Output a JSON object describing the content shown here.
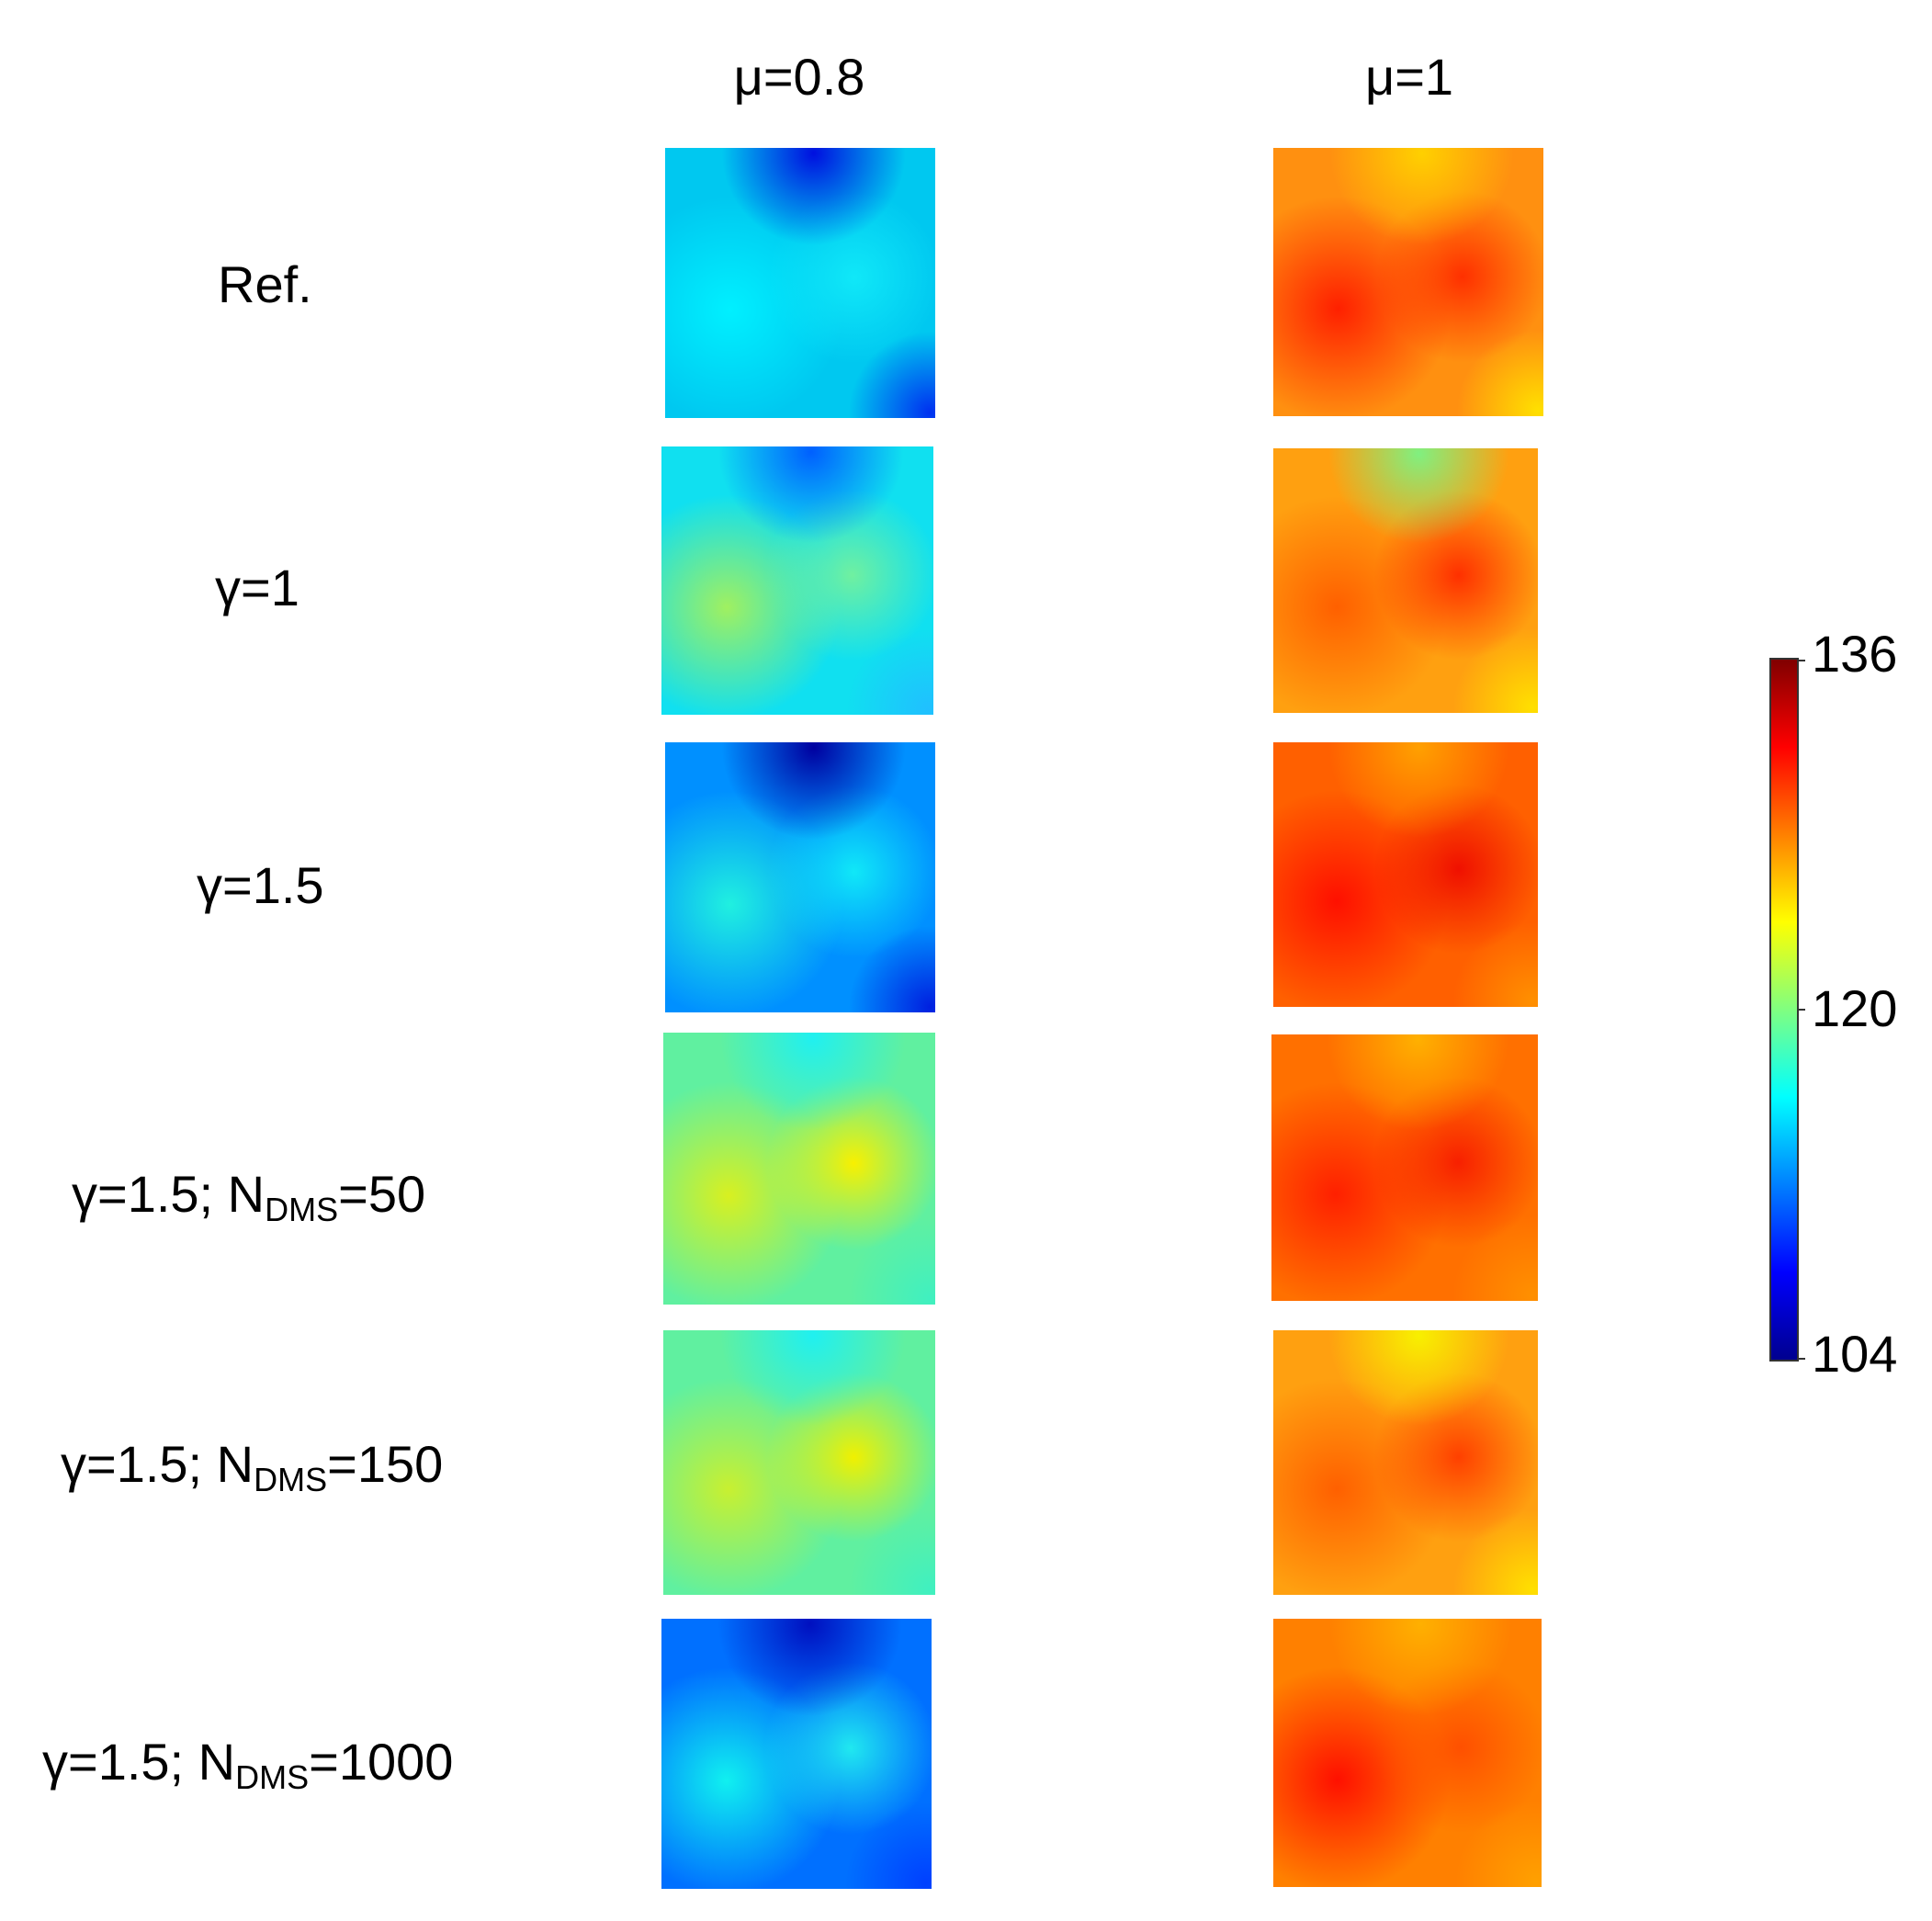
{
  "columns": [
    {
      "label": "μ=0.8"
    },
    {
      "label": "μ=1"
    }
  ],
  "rows": [
    {
      "label": "Ref.",
      "sub": "",
      "tail": ""
    },
    {
      "label": "γ=1",
      "sub": "",
      "tail": ""
    },
    {
      "label": "γ=1.5",
      "sub": "",
      "tail": ""
    },
    {
      "label": "γ=1.5; N",
      "sub": "DMS",
      "tail": "=50"
    },
    {
      "label": "γ=1.5; N",
      "sub": "DMS",
      "tail": "=150"
    },
    {
      "label": "γ=1.5; N",
      "sub": "DMS",
      "tail": "=1000"
    }
  ],
  "colorbar": {
    "min_label": "104",
    "mid_label": "120",
    "max_label": "136",
    "min": 104,
    "mid": 120,
    "max": 136,
    "colors": [
      "#00008f",
      "#0000ff",
      "#0080ff",
      "#00ffff",
      "#80ff80",
      "#ffff00",
      "#ff8000",
      "#ff0000",
      "#800000"
    ]
  },
  "panels": [
    [
      {
        "name": "ref-mu08",
        "base": "#00c8f0",
        "spots": [
          {
            "c": "#00f0ff"
          },
          {
            "c": "#10e8f8"
          },
          {
            "c": "#0010e0"
          },
          {
            "c": "#0030f0"
          }
        ]
      },
      {
        "name": "gamma1-mu08",
        "base": "#10e0f0",
        "spots": [
          {
            "c": "#a0f060"
          },
          {
            "c": "#70f0a0"
          },
          {
            "c": "#0060ff"
          },
          {
            "c": "#20c0ff"
          }
        ]
      },
      {
        "name": "gamma15-mu08",
        "base": "#0090ff",
        "spots": [
          {
            "c": "#20f0e0"
          },
          {
            "c": "#10e8f8"
          },
          {
            "c": "#0000a0"
          },
          {
            "c": "#0020e0"
          }
        ]
      },
      {
        "name": "gamma15-n50-mu08",
        "base": "#60f0a0",
        "spots": [
          {
            "c": "#d8f020"
          },
          {
            "c": "#f8f000"
          },
          {
            "c": "#20f0f0"
          },
          {
            "c": "#40f0c0"
          }
        ]
      },
      {
        "name": "gamma15-n150-mu08",
        "base": "#60f0a0",
        "spots": [
          {
            "c": "#c8f030"
          },
          {
            "c": "#f0f000"
          },
          {
            "c": "#20f0f0"
          },
          {
            "c": "#40f0c0"
          }
        ]
      },
      {
        "name": "gamma15-n1000-mu08",
        "base": "#0070ff",
        "spots": [
          {
            "c": "#10f0f0"
          },
          {
            "c": "#20e8f0"
          },
          {
            "c": "#0010c0"
          },
          {
            "c": "#0040ff"
          }
        ]
      }
    ],
    [
      {
        "name": "ref-mu1",
        "base": "#ff9010",
        "spots": [
          {
            "c": "#ff2000"
          },
          {
            "c": "#ff3000"
          },
          {
            "c": "#ffd000"
          },
          {
            "c": "#ffe000"
          }
        ]
      },
      {
        "name": "gamma1-mu1",
        "base": "#ffa010",
        "spots": [
          {
            "c": "#ff6000"
          },
          {
            "c": "#ff3000"
          },
          {
            "c": "#80f080"
          },
          {
            "c": "#ffe000"
          }
        ]
      },
      {
        "name": "gamma15-mu1",
        "base": "#ff6000",
        "spots": [
          {
            "c": "#ff1000"
          },
          {
            "c": "#f01000"
          },
          {
            "c": "#ffa000"
          },
          {
            "c": "#ff9000"
          }
        ]
      },
      {
        "name": "gamma15-n50-mu1",
        "base": "#ff7000",
        "spots": [
          {
            "c": "#ff2000"
          },
          {
            "c": "#f82000"
          },
          {
            "c": "#ffb000"
          },
          {
            "c": "#ff9000"
          }
        ]
      },
      {
        "name": "gamma15-n150-mu1",
        "base": "#ffa010",
        "spots": [
          {
            "c": "#ff6000"
          },
          {
            "c": "#ff4000"
          },
          {
            "c": "#f8f000"
          },
          {
            "c": "#ffe000"
          }
        ]
      },
      {
        "name": "gamma15-n1000-mu1",
        "base": "#ff8000",
        "spots": [
          {
            "c": "#ff1000"
          },
          {
            "c": "#ff5000"
          },
          {
            "c": "#ffb000"
          },
          {
            "c": "#ffa000"
          }
        ]
      }
    ]
  ]
}
